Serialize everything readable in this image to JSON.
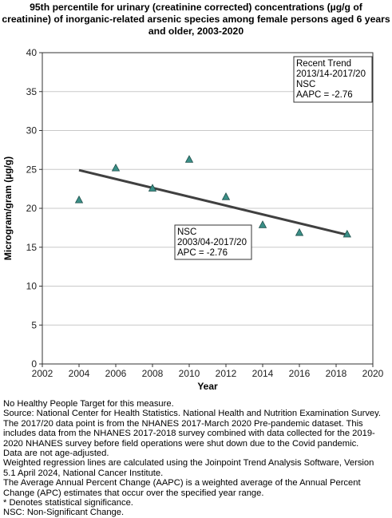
{
  "chart_data": {
    "type": "scatter",
    "title_lines": [
      "95th percentile for urinary (creatinine corrected) concentrations (µg/g of",
      "creatinine) of inorganic-related arsenic species among female persons aged 6 years",
      "and older, 2003-2020"
    ],
    "xlabel": "Year",
    "ylabel": "Microgram/gram (µg/g)",
    "xlim": [
      2002,
      2020
    ],
    "ylim": [
      0,
      40
    ],
    "x_ticks": [
      "2002",
      "2004",
      "2006",
      "2008",
      "2010",
      "2012",
      "2014",
      "2016",
      "2018",
      "2020"
    ],
    "y_ticks": [
      "0",
      "5",
      "10",
      "15",
      "20",
      "25",
      "30",
      "35",
      "40"
    ],
    "grid": "horizontal",
    "points": {
      "x": [
        2004,
        2006,
        2008,
        2010,
        2012,
        2014,
        2016,
        2018.6
      ],
      "y": [
        21.1,
        25.2,
        22.6,
        26.3,
        21.5,
        17.9,
        16.9,
        16.7
      ],
      "color": "#3a8f87"
    },
    "trend_line": {
      "x": [
        2004,
        2018.6
      ],
      "y": [
        24.9,
        16.6
      ],
      "color": "#404040"
    },
    "annotations": [
      {
        "lines": [
          "Recent Trend",
          "2013/14-2017/20",
          "NSC",
          "AAPC = -2.76"
        ],
        "position": "top-right"
      },
      {
        "lines": [
          "NSC",
          "2003/04-2017/20",
          "APC = -2.76"
        ],
        "position": "center"
      }
    ]
  },
  "footnotes": [
    "No Healthy People Target for this measure.",
    "Source: National Center for Health Statistics. National Health and Nutrition Examination Survey.",
    "The 2017/20 data point is from the NHANES 2017-March 2020 Pre-pandemic dataset. This",
    "includes data from the NHANES 2017-2018 survey combined with data collected for the 2019-",
    "2020 NHANES survey before field operations were shut down due to the Covid pandemic.",
    "Data are not age-adjusted.",
    "Weighted regression lines are calculated using the Joinpoint Trend Analysis Software, Version",
    "5.1 April 2024, National Cancer Institute.",
    "The Average Annual Percent Change (AAPC) is a weighted average of the Annual Percent",
    "Change (APC) estimates that occur over the specified year range.",
    "* Denotes statistical significance.",
    "NSC: Non-Significant Change."
  ]
}
